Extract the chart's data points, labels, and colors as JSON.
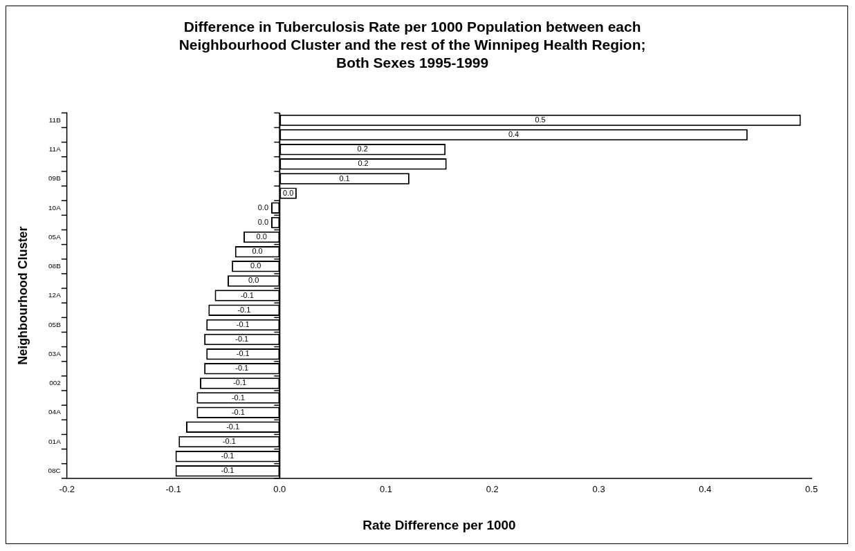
{
  "chart_data": {
    "type": "bar",
    "orientation": "horizontal",
    "title": "Difference in Tuberculosis Rate per 1000 Population between each\nNeighbourhood Cluster and the rest of the Winnipeg Health Region;\nBoth Sexes 1995-1999",
    "xlabel": "Rate Difference per 1000",
    "ylabel": "Neighbourhood Cluster",
    "categories": [
      "11B",
      null,
      "11A",
      null,
      "09B",
      null,
      "10A",
      null,
      "05A",
      null,
      "08B",
      null,
      "12A",
      null,
      "05B",
      null,
      "03A",
      null,
      "002",
      null,
      "04A",
      null,
      "01A",
      null,
      "08C"
    ],
    "values": [
      0.49,
      0.44,
      0.156,
      0.157,
      0.122,
      0.016,
      -0.008,
      -0.008,
      -0.034,
      -0.042,
      -0.045,
      -0.049,
      -0.061,
      -0.067,
      -0.069,
      -0.071,
      -0.069,
      -0.071,
      -0.075,
      -0.078,
      -0.078,
      -0.088,
      -0.095,
      -0.098,
      -0.098
    ],
    "value_labels": [
      "0.5",
      "0.4",
      "0.2",
      "0.2",
      "0.1",
      "0.0",
      "0.0",
      "0.0",
      "0.0",
      "0.0",
      "0.0",
      "0.0",
      "-0.1",
      "-0.1",
      "-0.1",
      "-0.1",
      "-0.1",
      "-0.1",
      "-0.1",
      "-0.1",
      "-0.1",
      "-0.1",
      "-0.1",
      "-0.1",
      "-0.1"
    ],
    "color": "#ffffff",
    "xlim": [
      -0.2,
      0.5
    ],
    "xticks": [
      -0.2,
      -0.1,
      {
        "value": 0,
        "label": "0.0"
      },
      0.1,
      0.2,
      0.3,
      0.4,
      0.5
    ],
    "legend": false
  }
}
